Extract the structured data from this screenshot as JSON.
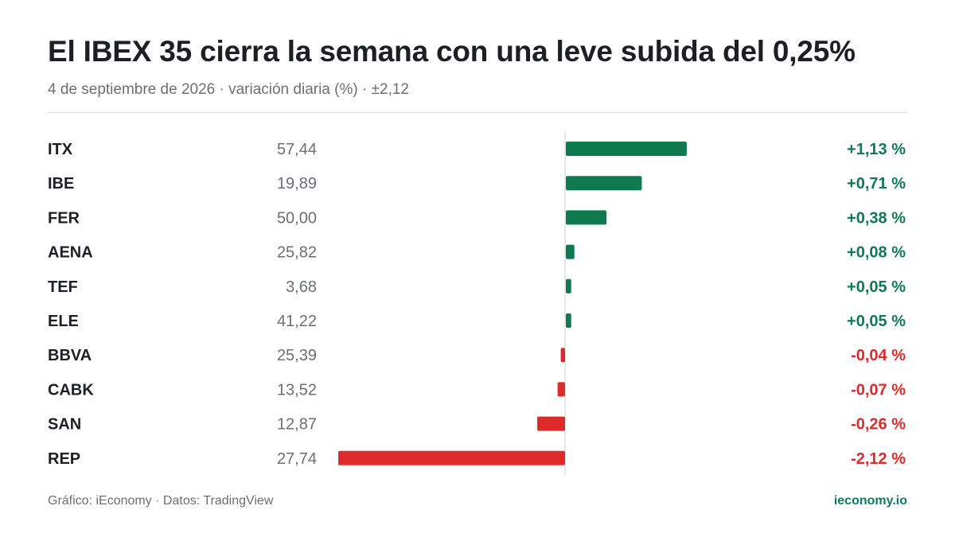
{
  "header": {
    "title": "El IBEX 35 cierra la semana con una leve subida del 0,25%",
    "subtitle": "4 de septiembre de 2026 · variación diaria (%) · ±2,12"
  },
  "chart_data": {
    "type": "bar",
    "orientation": "horizontal",
    "scale_max": 2.12,
    "rows": [
      {
        "ticker": "ITX",
        "price": "57,44",
        "change": 1.13,
        "change_label": "+1,13 %"
      },
      {
        "ticker": "IBE",
        "price": "19,89",
        "change": 0.71,
        "change_label": "+0,71 %"
      },
      {
        "ticker": "FER",
        "price": "50,00",
        "change": 0.38,
        "change_label": "+0,38 %"
      },
      {
        "ticker": "AENA",
        "price": "25,82",
        "change": 0.08,
        "change_label": "+0,08 %"
      },
      {
        "ticker": "TEF",
        "price": "3,68",
        "change": 0.05,
        "change_label": "+0,05 %"
      },
      {
        "ticker": "ELE",
        "price": "41,22",
        "change": 0.05,
        "change_label": "+0,05 %"
      },
      {
        "ticker": "BBVA",
        "price": "25,39",
        "change": -0.04,
        "change_label": "-0,04 %"
      },
      {
        "ticker": "CABK",
        "price": "13,52",
        "change": -0.07,
        "change_label": "-0,07 %"
      },
      {
        "ticker": "SAN",
        "price": "12,87",
        "change": -0.26,
        "change_label": "-0,26 %"
      },
      {
        "ticker": "REP",
        "price": "27,74",
        "change": -2.12,
        "change_label": "-2,12 %"
      }
    ],
    "colors": {
      "positive": "#0f7a4f",
      "negative": "#dd2b2b",
      "ticker": "#1c2024",
      "price": "#6b6f73",
      "axis": "#d0d0d0"
    }
  },
  "footer": {
    "source": "Gráfico: iEconomy · Datos: TradingView",
    "brand": "ieconomy.io"
  }
}
